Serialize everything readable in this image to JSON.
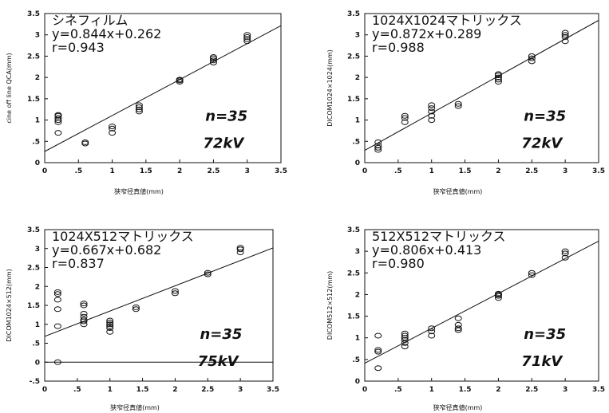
{
  "chart_data": [
    {
      "type": "scatter",
      "title": "",
      "xlabel": "狭窄径真値(mm)",
      "ylabel": "cine off line QCA(mm)",
      "xlim": [
        0,
        3.5
      ],
      "ylim": [
        0,
        3.5
      ],
      "x_ticks": [
        "0",
        ".5",
        "1",
        "1.5",
        "2",
        "2.5",
        "3",
        "3.5"
      ],
      "y_ticks": [
        "0",
        ".5",
        "1",
        "1.5",
        "2",
        "2.5",
        "3",
        "3.5"
      ],
      "annotations": [
        "シネフィルム",
        "y=0.844x+0.262",
        "r=0.943"
      ],
      "n_label": "n=35",
      "kv_label": "72kV",
      "fit": {
        "slope": 0.844,
        "intercept": 0.262
      },
      "x": [
        0.2,
        0.2,
        0.2,
        0.2,
        0.2,
        0.2,
        0.6,
        0.6,
        1.0,
        1.0,
        1.0,
        1.4,
        1.4,
        1.4,
        1.4,
        2.0,
        2.0,
        2.0,
        2.5,
        2.5,
        2.5,
        2.5,
        3.0,
        3.0,
        3.0,
        3.0
      ],
      "y": [
        0.7,
        0.95,
        1.0,
        1.05,
        1.1,
        1.12,
        0.45,
        0.48,
        0.7,
        0.8,
        0.85,
        1.2,
        1.25,
        1.3,
        1.35,
        1.9,
        1.93,
        1.95,
        2.35,
        2.4,
        2.45,
        2.48,
        2.85,
        2.9,
        2.95,
        3.0
      ],
      "grid": false
    },
    {
      "type": "scatter",
      "title": "",
      "xlabel": "狭窄径真値(mm)",
      "ylabel": "DICOM1024×1024(mm)",
      "xlim": [
        0,
        3.5
      ],
      "ylim": [
        0,
        3.5
      ],
      "x_ticks": [
        "0",
        ".5",
        "1",
        "1.5",
        "2",
        "2.5",
        "3",
        "3.5"
      ],
      "y_ticks": [
        "0",
        ".5",
        "1",
        "1.5",
        "2",
        "2.5",
        "3",
        "3.5"
      ],
      "annotations": [
        "1024X1024マトリックス",
        "y=0.872x+0.289",
        "r=0.988"
      ],
      "n_label": "n=35",
      "kv_label": "72kV",
      "fit": {
        "slope": 0.872,
        "intercept": 0.289
      },
      "x": [
        0.2,
        0.2,
        0.2,
        0.2,
        0.6,
        0.6,
        0.6,
        1.0,
        1.0,
        1.0,
        1.0,
        1.0,
        1.4,
        1.4,
        2.0,
        2.0,
        2.0,
        2.0,
        2.0,
        2.5,
        2.5,
        2.5,
        3.0,
        3.0,
        3.0,
        3.0
      ],
      "y": [
        0.3,
        0.35,
        0.4,
        0.48,
        0.95,
        1.05,
        1.1,
        1.0,
        1.1,
        1.2,
        1.28,
        1.35,
        1.33,
        1.38,
        1.9,
        1.95,
        2.0,
        2.05,
        2.08,
        2.38,
        2.45,
        2.5,
        2.85,
        2.95,
        3.0,
        3.05
      ],
      "grid": false
    },
    {
      "type": "scatter",
      "title": "",
      "xlabel": "狭窄径真値(mm)",
      "ylabel": "DICOM1024×512(mm)",
      "xlim": [
        0,
        3.5
      ],
      "ylim": [
        -0.5,
        3.5
      ],
      "x_ticks": [
        "0",
        ".5",
        "1",
        "1.5",
        "2",
        "2.5",
        "3",
        "3.5"
      ],
      "y_ticks": [
        "-.5",
        "0",
        ".5",
        "1",
        "1.5",
        "2",
        "2.5",
        "3",
        "3.5"
      ],
      "annotations": [
        "1024X512マトリックス",
        "y=0.667x+0.682",
        "r=0.837"
      ],
      "n_label": "n=35",
      "kv_label": "75kV",
      "fit": {
        "slope": 0.667,
        "intercept": 0.682
      },
      "x": [
        0.2,
        0.2,
        0.2,
        0.2,
        0.2,
        0.2,
        0.6,
        0.6,
        0.6,
        0.6,
        0.6,
        0.6,
        0.6,
        1.0,
        1.0,
        1.0,
        1.0,
        1.0,
        1.0,
        1.4,
        1.4,
        2.0,
        2.0,
        2.5,
        2.5,
        3.0,
        3.0,
        3.0
      ],
      "y": [
        0.0,
        0.95,
        1.4,
        1.65,
        1.8,
        1.85,
        1.0,
        1.08,
        1.12,
        1.2,
        1.28,
        1.5,
        1.55,
        0.8,
        0.9,
        0.95,
        1.0,
        1.05,
        1.1,
        1.4,
        1.45,
        1.82,
        1.88,
        2.32,
        2.36,
        2.9,
        2.98,
        3.02
      ],
      "grid": false
    },
    {
      "type": "scatter",
      "title": "",
      "xlabel": "狭窄径真値(mm)",
      "ylabel": "DICOM512×512(mm)",
      "xlim": [
        0,
        3.5
      ],
      "ylim": [
        0,
        3.5
      ],
      "x_ticks": [
        "0",
        ".5",
        "1",
        "1.5",
        "2",
        "2.5",
        "3",
        "3.5"
      ],
      "y_ticks": [
        "0",
        ".5",
        "1",
        "1.5",
        "2",
        "2.5",
        "3",
        "3.5"
      ],
      "annotations": [
        "512X512マトリックス",
        "y=0.806x+0.413",
        "r=0.980"
      ],
      "n_label": "n=35",
      "kv_label": "71kV",
      "fit": {
        "slope": 0.806,
        "intercept": 0.413
      },
      "x": [
        0.2,
        0.2,
        0.2,
        0.2,
        0.6,
        0.6,
        0.6,
        0.6,
        0.6,
        0.6,
        1.0,
        1.0,
        1.0,
        1.4,
        1.4,
        1.4,
        1.4,
        2.0,
        2.0,
        2.0,
        2.0,
        2.5,
        2.5,
        3.0,
        3.0,
        3.0
      ],
      "y": [
        0.3,
        0.68,
        0.72,
        1.05,
        0.8,
        0.88,
        0.95,
        1.0,
        1.05,
        1.1,
        1.05,
        1.15,
        1.22,
        1.18,
        1.22,
        1.3,
        1.45,
        1.92,
        1.97,
        2.0,
        2.02,
        2.45,
        2.5,
        2.85,
        2.95,
        3.0
      ],
      "grid": false
    }
  ]
}
